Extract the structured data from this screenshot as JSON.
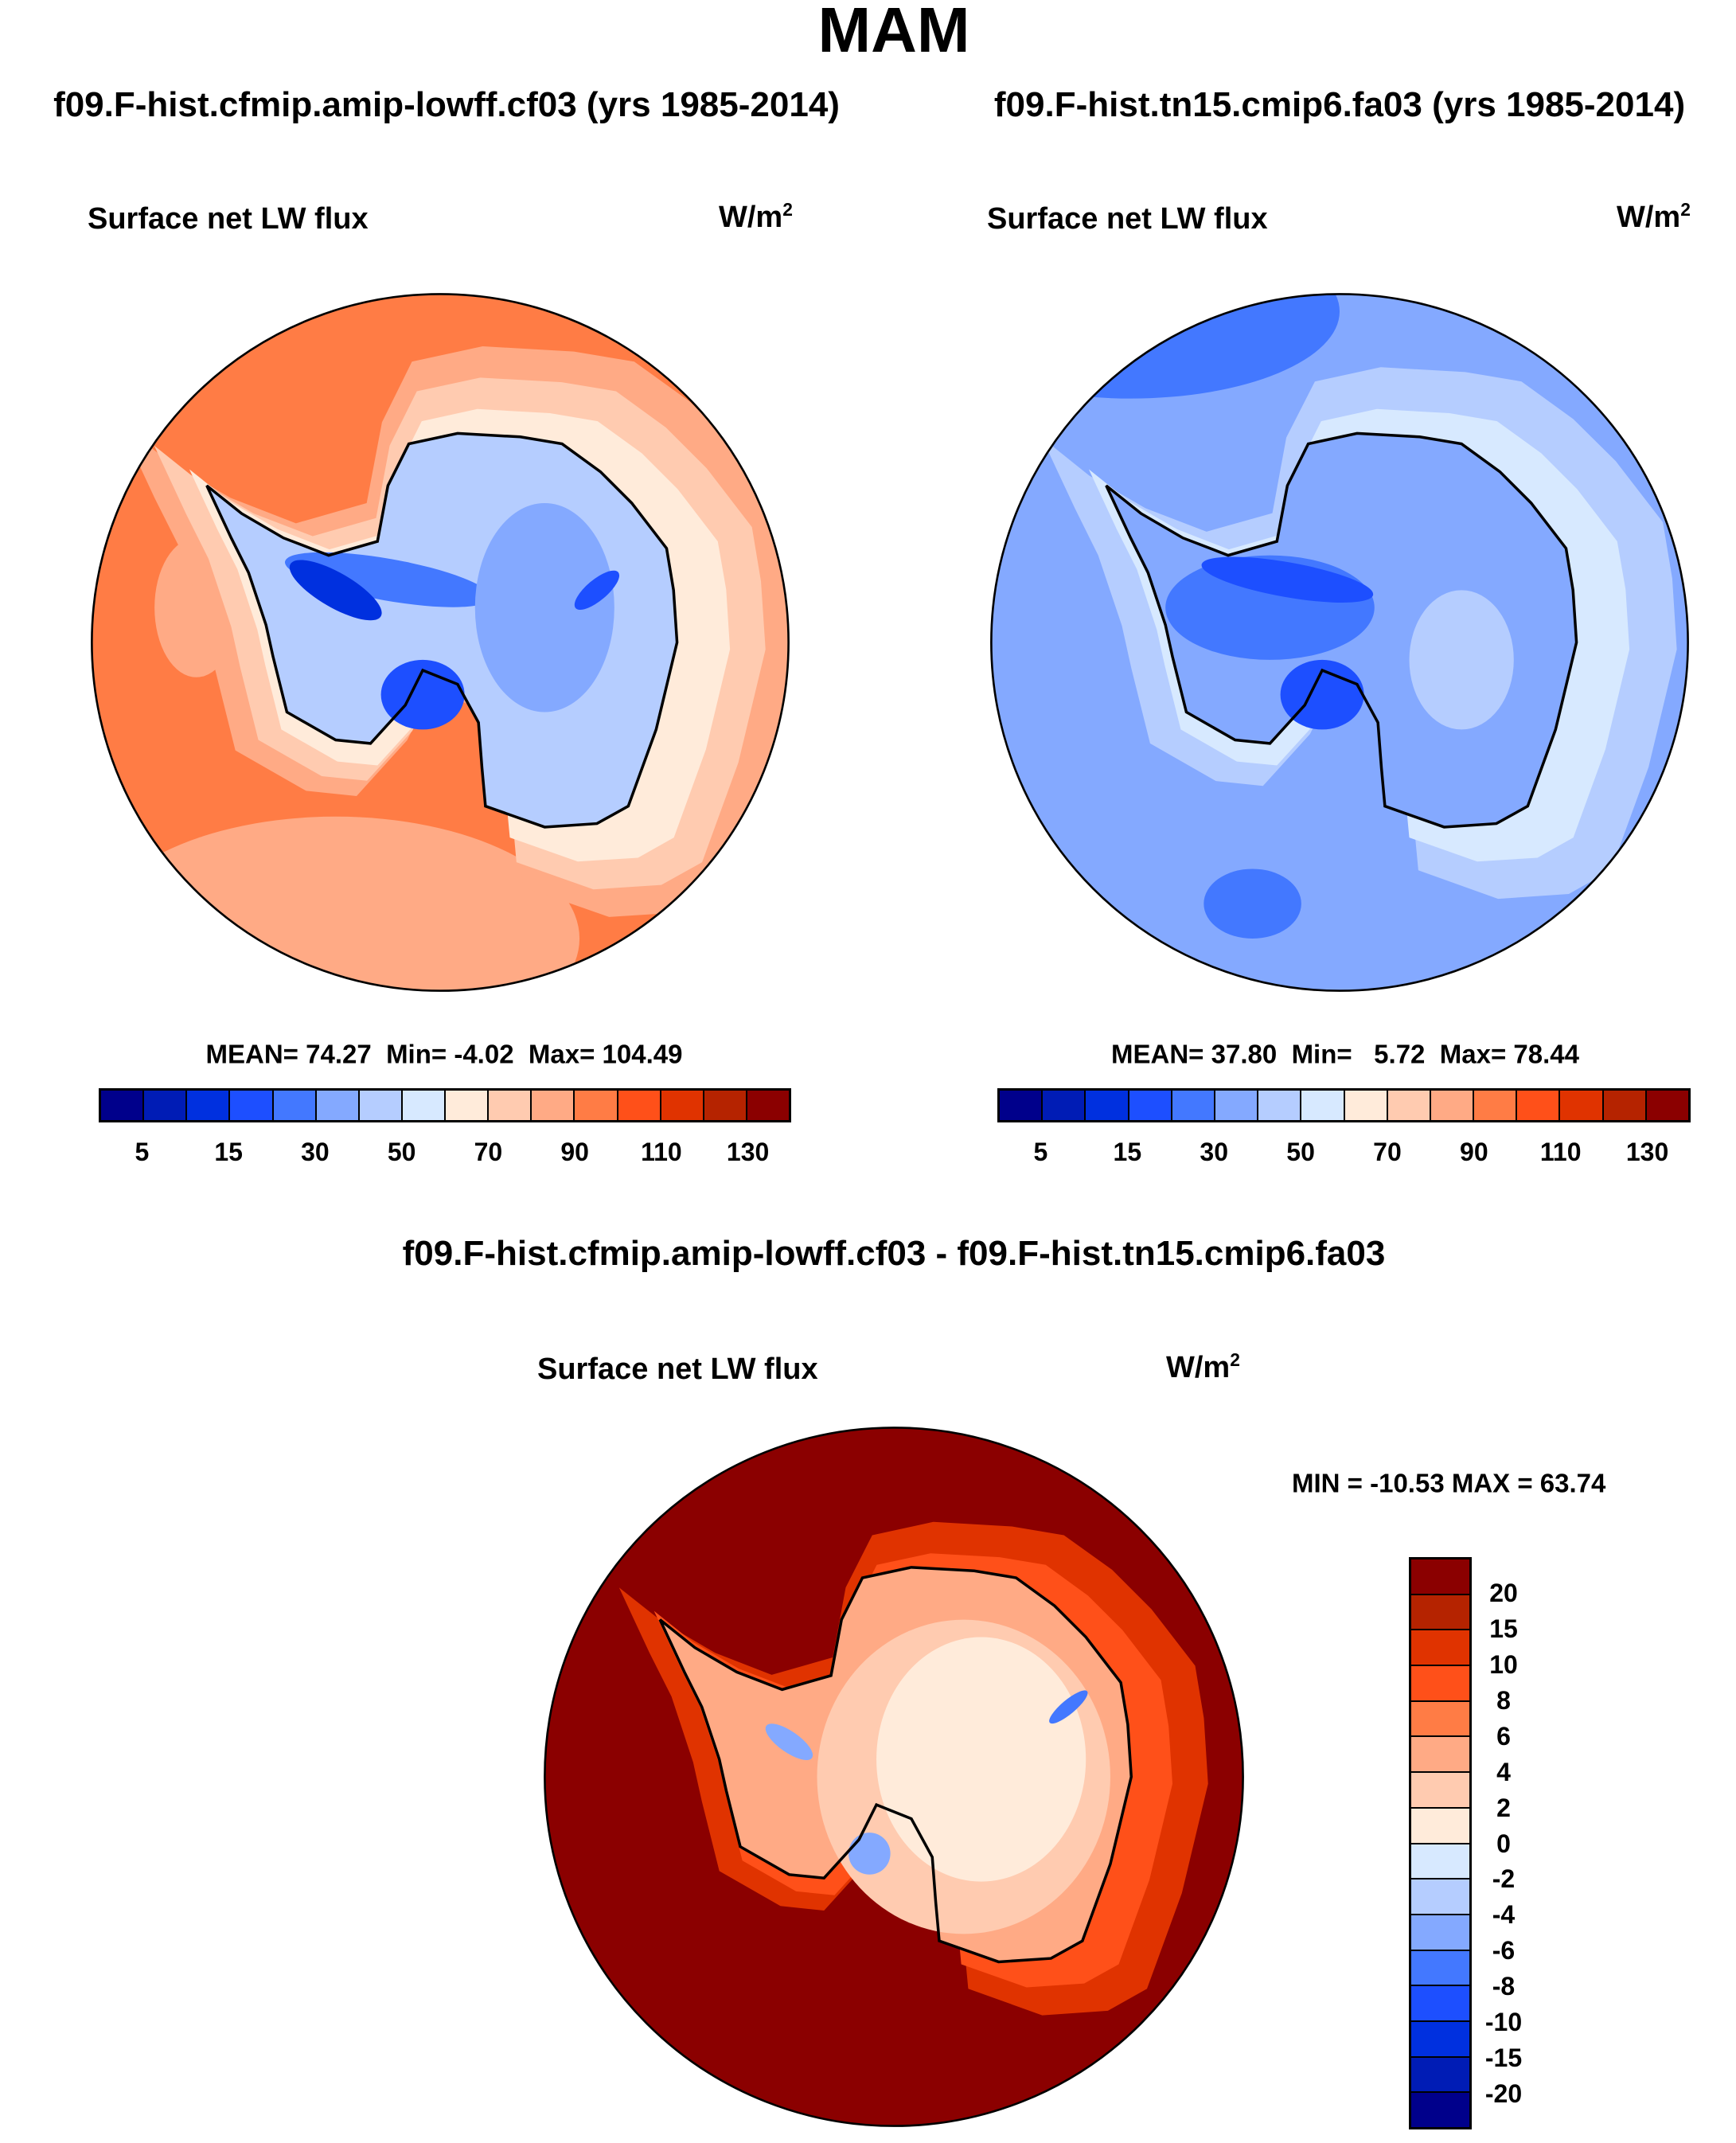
{
  "chart_data": [
    {
      "type": "heatmap",
      "projection": "south-polar-stereographic",
      "title": "f09.F-hist.cfmip.amip-lowff.cf03 (yrs 1985-2014)",
      "variable": "Surface net LW flux",
      "units": "W/m",
      "units_exp": "2",
      "stats": {
        "mean_label": "MEAN=",
        "mean": "74.27",
        "min_label": "Min=",
        "min": "-4.02",
        "max_label": "Max=",
        "max": "104.49"
      },
      "colorbar": {
        "tick_labels": [
          "5",
          "15",
          "30",
          "50",
          "70",
          "90",
          "110",
          "130"
        ]
      }
    },
    {
      "type": "heatmap",
      "projection": "south-polar-stereographic",
      "title": "f09.F-hist.tn15.cmip6.fa03 (yrs 1985-2014)",
      "variable": "Surface net LW flux",
      "units": "W/m",
      "units_exp": "2",
      "stats": {
        "mean_label": "MEAN=",
        "mean": "37.80",
        "min_label": "Min=",
        "min": "5.72",
        "max_label": "Max=",
        "max": "78.44"
      },
      "colorbar": {
        "tick_labels": [
          "5",
          "15",
          "30",
          "50",
          "70",
          "90",
          "110",
          "130"
        ]
      }
    },
    {
      "type": "heatmap",
      "projection": "south-polar-stereographic",
      "title": "f09.F-hist.cfmip.amip-lowff.cf03 - f09.F-hist.tn15.cmip6.fa03",
      "variable": "Surface net LW flux",
      "units": "W/m",
      "units_exp": "2",
      "stats": {
        "text": "MIN = -10.53 MAX =  63.74"
      },
      "colorbar": {
        "tick_labels": [
          "20",
          "15",
          "10",
          "8",
          "6",
          "4",
          "2",
          "0",
          "-2",
          "-4",
          "-6",
          "-8",
          "-10",
          "-15",
          "-20"
        ]
      }
    }
  ],
  "suptitle": "MAM",
  "palette": [
    "#00008B",
    "#001CB5",
    "#0030DF",
    "#1D4FFF",
    "#4378FF",
    "#84A9FF",
    "#B5CDFF",
    "#D7E9FF",
    "#FFEBDA",
    "#FFCBB0",
    "#FFAA85",
    "#FF7C45",
    "#FF5019",
    "#E03300",
    "#B52300",
    "#8B0000"
  ]
}
